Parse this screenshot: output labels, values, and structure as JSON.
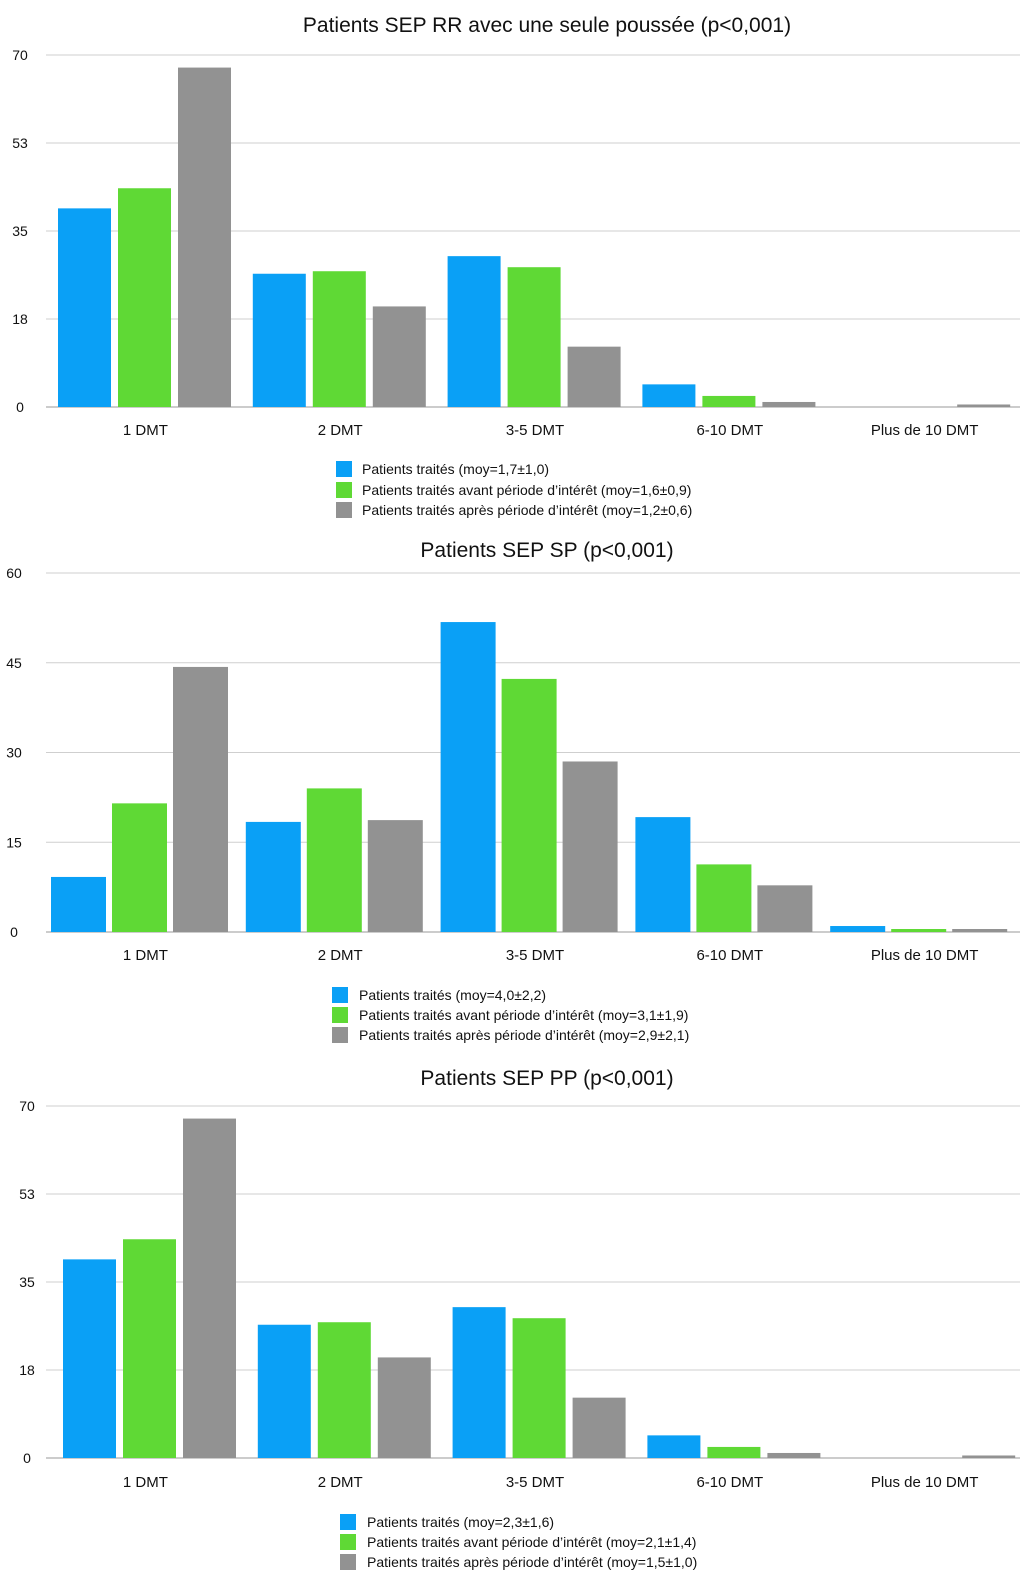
{
  "colors": {
    "series": [
      "#0aa0f6",
      "#5fd935",
      "#929292"
    ],
    "grid": "#cfcfcf",
    "axis": "#9a9a9a",
    "text": "#111111"
  },
  "chart_data": [
    {
      "type": "bar",
      "title": "Patients SEP RR avec une seule poussée (p<0,001)",
      "categories": [
        "1 DMT",
        "2 DMT",
        "3-5 DMT",
        "6-10 DMT",
        "Plus de 10 DMT"
      ],
      "yticks": [
        "0",
        "18",
        "35",
        "53",
        "70"
      ],
      "ylim": [
        0,
        70
      ],
      "grid": true,
      "legend": "bottom",
      "series": [
        {
          "name": "Patients traités (moy=1,7±1,0)",
          "values": [
            39.5,
            26.5,
            30,
            4.5,
            0
          ]
        },
        {
          "name": "Patients traités avant période d’intérêt (moy=1,6±0,9)",
          "values": [
            43.5,
            27,
            27.8,
            2.2,
            0
          ]
        },
        {
          "name": "Patients traités après période d’intérêt (moy=1,2±0,6)",
          "values": [
            67.5,
            20,
            12,
            1,
            0.5
          ]
        }
      ]
    },
    {
      "type": "bar",
      "title": "Patients SEP SP (p<0,001)",
      "categories": [
        "1 DMT",
        "2 DMT",
        "3-5 DMT",
        "6-10 DMT",
        "Plus de 10 DMT"
      ],
      "yticks": [
        "0",
        "15",
        "30",
        "45",
        "60"
      ],
      "ylim": [
        0,
        60
      ],
      "grid": true,
      "legend": "bottom",
      "series": [
        {
          "name": "Patients traités (moy=4,0±2,2)",
          "values": [
            9.2,
            18.4,
            51.8,
            19.2,
            1
          ]
        },
        {
          "name": "Patients traités avant période d’intérêt (moy=3,1±1,9)",
          "values": [
            21.5,
            24,
            42.3,
            11.3,
            0.5
          ]
        },
        {
          "name": "Patients traités après période d’intérêt (moy=2,9±2,1)",
          "values": [
            44.3,
            18.7,
            28.5,
            7.8,
            0.5
          ]
        }
      ]
    },
    {
      "type": "bar",
      "title": "Patients SEP PP (p<0,001)",
      "categories": [
        "1 DMT",
        "2 DMT",
        "3-5 DMT",
        "6-10 DMT",
        "Plus de 10 DMT"
      ],
      "yticks": [
        "0",
        "18",
        "35",
        "53",
        "70"
      ],
      "ylim": [
        0,
        70
      ],
      "grid": true,
      "legend": "bottom",
      "series": [
        {
          "name": "Patients traités (moy=2,3±1,6)",
          "values": [
            39.5,
            26.5,
            30,
            4.5,
            0
          ]
        },
        {
          "name": "Patients traités avant période d’intérêt (moy=2,1±1,4)",
          "values": [
            43.5,
            27,
            27.8,
            2.2,
            0
          ]
        },
        {
          "name": "Patients traités après période d’intérêt (moy=1,5±1,0)",
          "values": [
            67.5,
            20,
            12,
            1,
            0.5
          ]
        }
      ]
    }
  ]
}
